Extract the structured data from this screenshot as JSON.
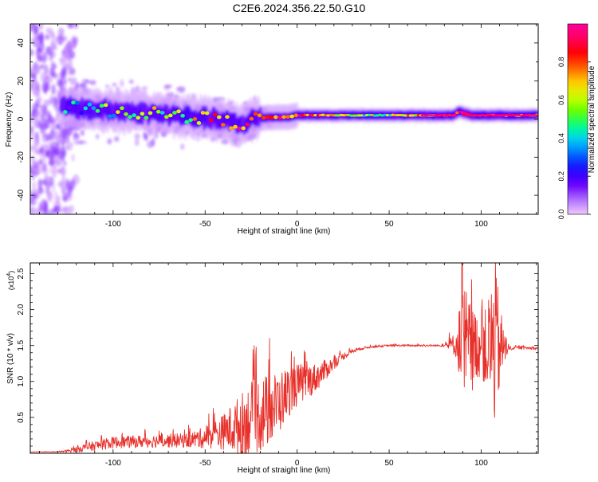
{
  "title": "C2E6.2024.356.22.50.G10",
  "colors": {
    "snr_line": "#e8302a",
    "spectrogram_background": "#ffffff",
    "colormap": [
      "#f0c8ff",
      "#b070ff",
      "#6a00ff",
      "#2000ff",
      "#0060ff",
      "#00c8ff",
      "#00ff90",
      "#60ff00",
      "#d0ff00",
      "#ffd000",
      "#ff6000",
      "#ff0000",
      "#ff0060",
      "#ff0098"
    ]
  },
  "chart_data": [
    {
      "type": "heatmap",
      "name": "spectrogram",
      "xlabel": "Height of straight line (km)",
      "ylabel": "Frequency (Hz)",
      "xlim": [
        -145,
        131
      ],
      "ylim": [
        -50,
        50
      ],
      "xticks": [
        "-100",
        "-50",
        "0",
        "50",
        "100"
      ],
      "xtick_values": [
        -100,
        -50,
        0,
        50,
        100
      ],
      "yticks": [
        "-40",
        "-20",
        "0",
        "20",
        "40"
      ],
      "ytick_values": [
        -40,
        -20,
        0,
        20,
        40
      ],
      "ridge": [
        {
          "x": -125,
          "f": 6,
          "amp": 0.3
        },
        {
          "x": -110,
          "f": 5,
          "amp": 0.45
        },
        {
          "x": -95,
          "f": 4,
          "amp": 0.5
        },
        {
          "x": -80,
          "f": 3,
          "amp": 0.55
        },
        {
          "x": -65,
          "f": 2,
          "amp": 0.6
        },
        {
          "x": -55,
          "f": 1,
          "amp": 0.6
        },
        {
          "x": -45,
          "f": 0,
          "amp": 0.7
        },
        {
          "x": -35,
          "f": -2,
          "amp": 0.8
        },
        {
          "x": -30,
          "f": -3,
          "amp": 0.85
        },
        {
          "x": -25,
          "f": 0,
          "amp": 0.7
        },
        {
          "x": -15,
          "f": 1,
          "amp": 0.8
        },
        {
          "x": -5,
          "f": 1,
          "amp": 0.75
        },
        {
          "x": 0,
          "f": 2,
          "amp": 0.85
        },
        {
          "x": 10,
          "f": 2,
          "amp": 0.8
        },
        {
          "x": 30,
          "f": 2,
          "amp": 0.55
        },
        {
          "x": 50,
          "f": 2,
          "amp": 0.55
        },
        {
          "x": 70,
          "f": 2,
          "amp": 0.7
        },
        {
          "x": 85,
          "f": 2,
          "amp": 0.9
        },
        {
          "x": 88,
          "f": 4,
          "amp": 0.9
        },
        {
          "x": 95,
          "f": 2,
          "amp": 0.9
        },
        {
          "x": 105,
          "f": 2,
          "amp": 0.85
        },
        {
          "x": 120,
          "f": 2,
          "amp": 0.75
        },
        {
          "x": 131,
          "f": 2,
          "amp": 0.8
        }
      ],
      "colorbar": {
        "label": "Normalized spectral amplitude",
        "range": [
          0,
          1
        ],
        "ticks": [
          "0.0",
          "0.2",
          "0.4",
          "0.6",
          "0.8"
        ],
        "tick_values": [
          0,
          0.2,
          0.4,
          0.6,
          0.8
        ]
      }
    },
    {
      "type": "line",
      "name": "snr",
      "xlabel": "Height of straight line (km)",
      "ylabel": "SNR (10 * v/v)",
      "y_multiplier_label": "(x10",
      "y_multiplier_exponent": "4",
      "y_multiplier_close": ")",
      "xlim": [
        -145,
        131
      ],
      "ylim": [
        0,
        26500
      ],
      "xticks": [
        "-100",
        "-50",
        "0",
        "50",
        "100"
      ],
      "xtick_values": [
        -100,
        -50,
        0,
        50,
        100
      ],
      "yticks": [
        "0.5",
        "1.0",
        "1.5",
        "2.0",
        "2.5"
      ],
      "ytick_values": [
        5000,
        10000,
        15000,
        20000,
        25000
      ],
      "grid": false,
      "envelope": {
        "x": [
          -145,
          -130,
          -125,
          -115,
          -100,
          -80,
          -60,
          -50,
          -40,
          -35,
          -30,
          -25,
          -20,
          -15,
          -10,
          -5,
          0,
          5,
          10,
          15,
          20,
          25,
          30,
          35,
          40,
          50,
          60,
          70,
          80,
          87,
          89,
          91,
          93,
          95,
          97,
          100,
          103,
          105,
          108,
          110,
          115,
          120,
          131
        ],
        "base": [
          200,
          200,
          300,
          800,
          1500,
          1700,
          1800,
          2200,
          3000,
          3500,
          4000,
          5000,
          5500,
          6000,
          7000,
          8500,
          9500,
          10000,
          10500,
          11500,
          12500,
          13500,
          14200,
          14600,
          14800,
          15000,
          15000,
          15000,
          15000,
          15200,
          15500,
          14000,
          15000,
          14500,
          15000,
          14800,
          14500,
          15000,
          15000,
          14800,
          14600,
          14700,
          14600
        ],
        "amp": [
          0,
          50,
          200,
          600,
          800,
          900,
          1000,
          1500,
          2500,
          3500,
          4500,
          5000,
          5500,
          5000,
          4500,
          3500,
          3000,
          2500,
          2000,
          1500,
          800,
          500,
          300,
          200,
          150,
          150,
          150,
          150,
          150,
          2000,
          8000,
          10000,
          7000,
          6000,
          5000,
          4000,
          6000,
          9000,
          12000,
          6000,
          300,
          200,
          200
        ]
      },
      "notes": "dense noisy series; sample points generated from base/amp envelope"
    }
  ]
}
